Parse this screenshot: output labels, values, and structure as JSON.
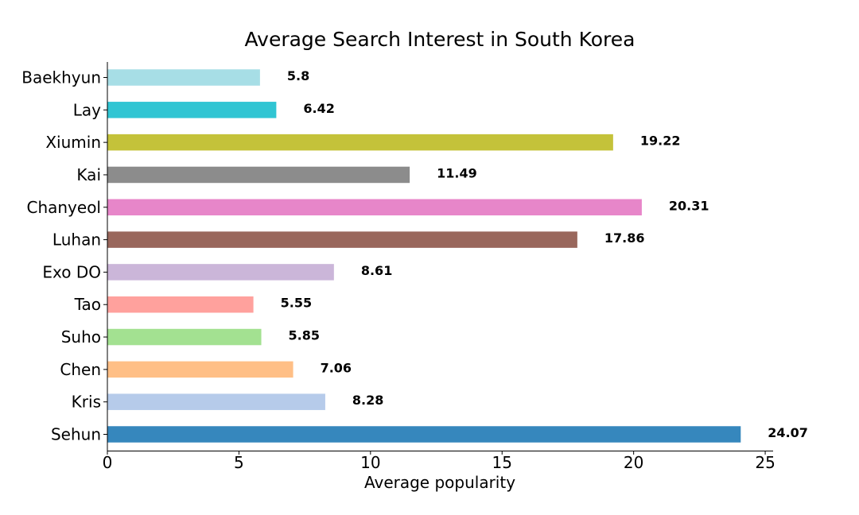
{
  "chart_data": {
    "type": "bar",
    "orientation": "horizontal",
    "title": "Average Search Interest in South Korea",
    "xlabel": "Average popularity",
    "ylabel": "",
    "xlim": [
      0,
      25.3
    ],
    "xticks": [
      0,
      5,
      10,
      15,
      20,
      25
    ],
    "grid": false,
    "categories": [
      "Sehun",
      "Kris",
      "Chen",
      "Suho",
      "Tao",
      "Exo DO",
      "Luhan",
      "Chanyeol",
      "Kai",
      "Xiumin",
      "Lay",
      "Baekhyun"
    ],
    "values": [
      24.07,
      8.28,
      7.06,
      5.85,
      5.55,
      8.61,
      17.86,
      20.31,
      11.49,
      19.22,
      6.42,
      5.8
    ],
    "value_labels": [
      "24.07",
      "8.28",
      "7.06",
      "5.85",
      "5.55",
      "8.61",
      "17.86",
      "20.31",
      "11.49",
      "19.22",
      "6.42",
      "5.8"
    ],
    "colors": [
      "#3687bd",
      "#b6cbea",
      "#ffbf86",
      "#a3e191",
      "#ffa19d",
      "#cbb6d9",
      "#99675c",
      "#e786c9",
      "#8c8c8c",
      "#c4c23a",
      "#30c5d3",
      "#a7dee6"
    ]
  }
}
